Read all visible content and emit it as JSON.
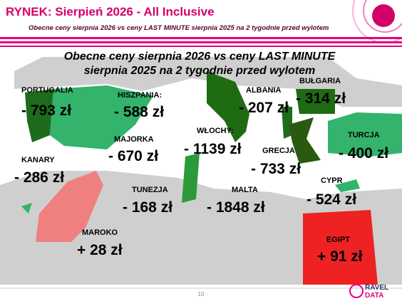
{
  "header": {
    "title": "RYNEK: Sierpień 2026 - All Inclusive",
    "subtitle": "Obecne ceny sierpnia 2026 vs ceny LAST MINUTE sierpnia 2025 na 2 tygodnie przed wylotem"
  },
  "map": {
    "title": [
      "Obecne ceny sierpnia 2026 vs ceny LAST MINUTE",
      "sierpnia 2025 na 2 tygodnie przed wylotem"
    ],
    "regions": [
      {
        "name": "PORTUGALIA",
        "value": "- 793 zł"
      },
      {
        "name": "HISZPANIA:",
        "value": "- 588 zł"
      },
      {
        "name": "ALBANIA",
        "value": "- 207 zł"
      },
      {
        "name": "BUŁGARIA",
        "value": "- 314 zł"
      },
      {
        "name": "MAJORKA",
        "value": "- 670 zł"
      },
      {
        "name": "WŁOCHY:",
        "value": "- 1139 zł"
      },
      {
        "name": "GRECJA",
        "value": "- 733 zł"
      },
      {
        "name": "TURCJA",
        "value": "- 400 zł"
      },
      {
        "name": "KANARY",
        "value": "- 286 zł"
      },
      {
        "name": "TUNEZJA",
        "value": "- 168 zł"
      },
      {
        "name": "MALTA",
        "value": "- 1848 zł"
      },
      {
        "name": "CYPR",
        "value": "- 524 zł"
      },
      {
        "name": "MAROKO",
        "value": "+ 28 zł"
      },
      {
        "name": "EGIPT",
        "value": "+ 91 zł"
      }
    ]
  },
  "footer": {
    "page": "10",
    "logo": [
      "RAVEL",
      "DATA"
    ]
  }
}
